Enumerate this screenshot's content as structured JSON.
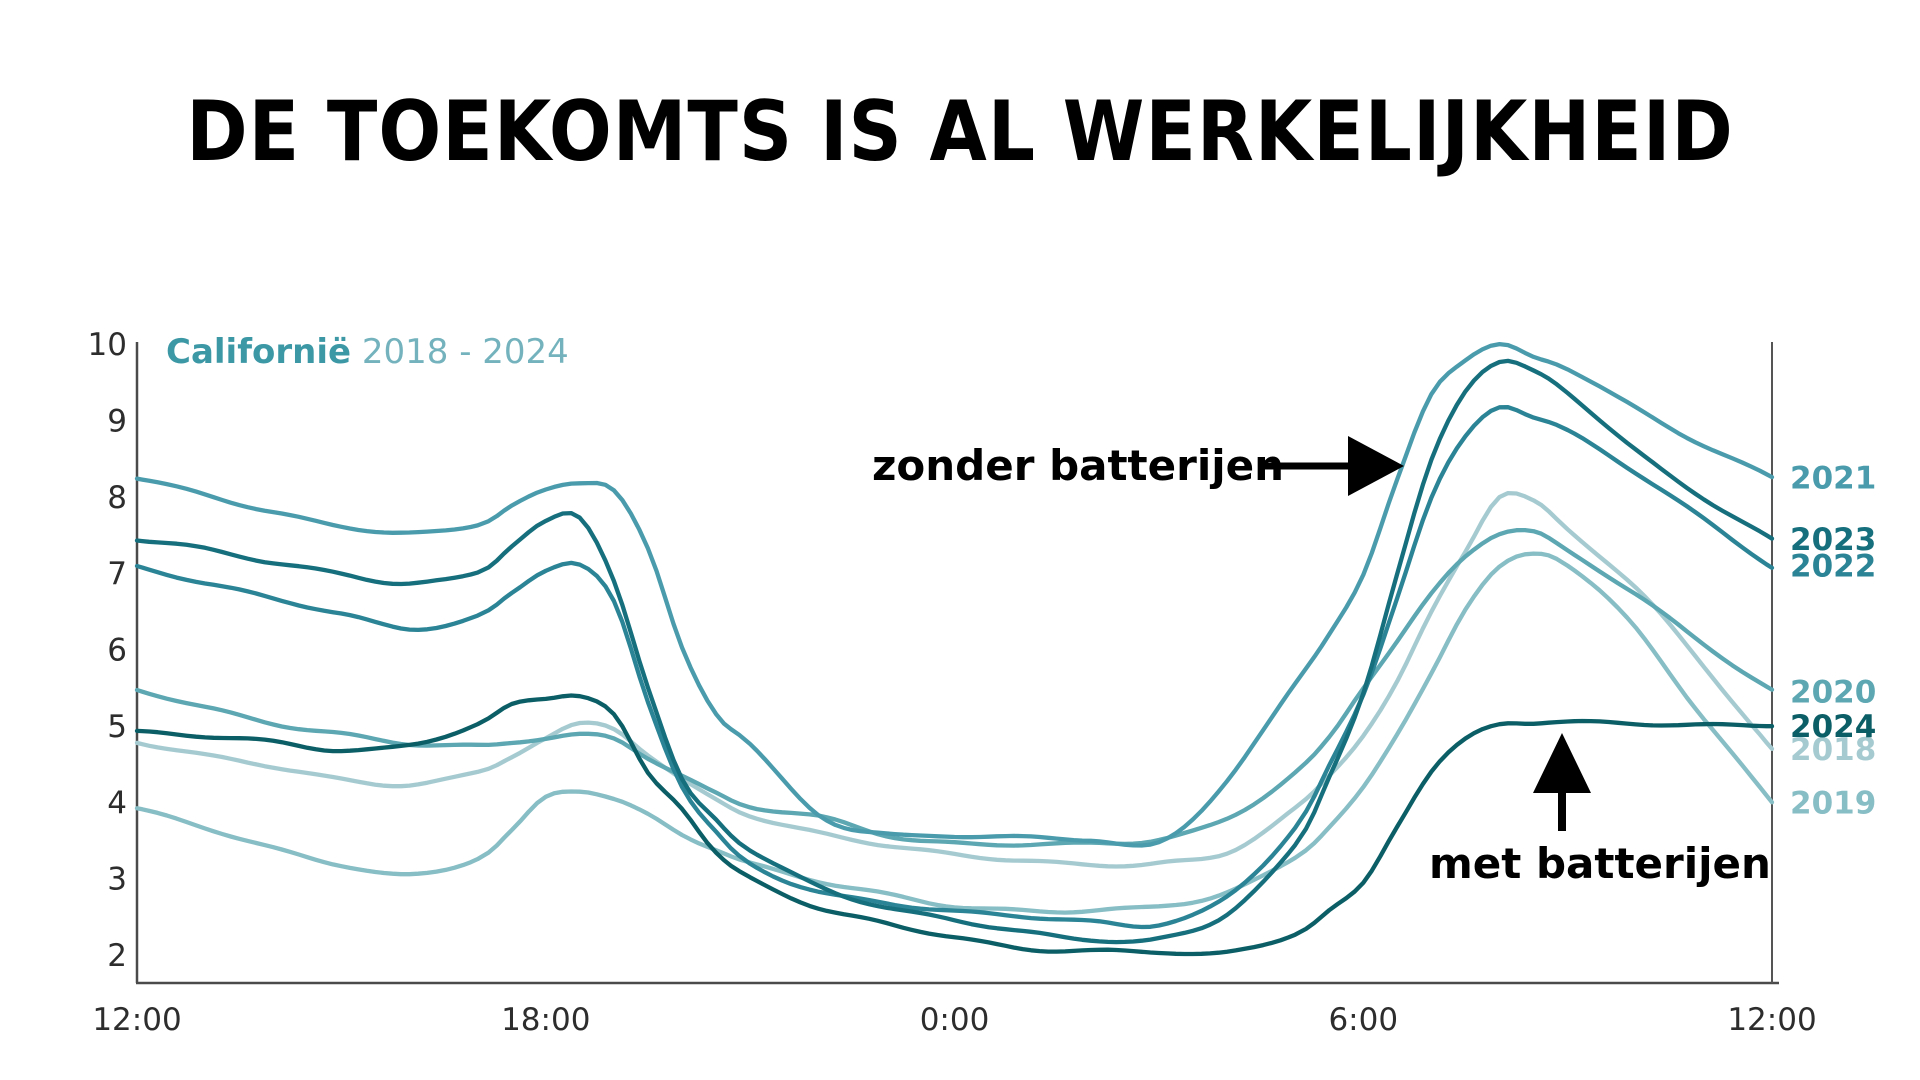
{
  "title": "DE TOEKOMTS IS AL WERKELIJKHEID",
  "chart_data": {
    "type": "line",
    "title": "Californië 2018 - 2024",
    "legend": {
      "region": "Californië",
      "period": "2018 - 2024",
      "region_color": "#3D98A6",
      "period_color": "#74B3BD"
    },
    "ylim": [
      2,
      10
    ],
    "grid": false,
    "y_ticks": [
      10,
      9,
      8,
      7,
      6,
      5,
      4,
      3,
      2
    ],
    "x_ticks": [
      {
        "hours_after_noon": 0,
        "label": "12:00"
      },
      {
        "hours_after_noon": 6,
        "label": "18:00"
      },
      {
        "hours_after_noon": 12,
        "label": "0:00"
      },
      {
        "hours_after_noon": 18,
        "label": "6:00"
      },
      {
        "hours_after_noon": 24,
        "label": "12:00"
      }
    ],
    "hours_after_noon": [
      0,
      1,
      2,
      3,
      4,
      5,
      5.5,
      6,
      6.5,
      7,
      7.5,
      8,
      8.5,
      9,
      10,
      11,
      12,
      13,
      14,
      15,
      16,
      17,
      17.5,
      18,
      18.5,
      19,
      19.5,
      20,
      20.5,
      21,
      22,
      23,
      24
    ],
    "series": [
      {
        "year": "2018",
        "color": "#A5CBD1",
        "values": [
          4.8,
          4.6,
          4.45,
          4.3,
          4.25,
          4.4,
          4.6,
          4.82,
          5.0,
          4.95,
          4.62,
          4.3,
          4.05,
          3.85,
          3.6,
          3.42,
          3.3,
          3.25,
          3.2,
          3.2,
          3.32,
          3.9,
          4.35,
          4.9,
          5.6,
          6.5,
          7.3,
          8.0,
          7.92,
          7.55,
          6.8,
          5.8,
          4.7
        ]
      },
      {
        "year": "2019",
        "color": "#87BDC5",
        "values": [
          3.9,
          3.65,
          3.4,
          3.2,
          3.05,
          3.25,
          3.6,
          4.05,
          4.15,
          4.05,
          3.85,
          3.6,
          3.4,
          3.2,
          2.95,
          2.78,
          2.65,
          2.6,
          2.58,
          2.62,
          2.8,
          3.3,
          3.7,
          4.2,
          4.9,
          5.7,
          6.5,
          7.05,
          7.25,
          7.1,
          6.3,
          5.1,
          4.0
        ]
      },
      {
        "year": "2020",
        "color": "#5CA7B2",
        "values": [
          5.45,
          5.25,
          5.05,
          4.9,
          4.75,
          4.72,
          4.78,
          4.85,
          4.9,
          4.85,
          4.6,
          4.35,
          4.1,
          3.92,
          3.8,
          3.58,
          3.48,
          3.45,
          3.44,
          3.5,
          3.8,
          4.4,
          4.85,
          5.5,
          6.1,
          6.7,
          7.2,
          7.52,
          7.55,
          7.3,
          6.75,
          6.05,
          5.45
        ]
      },
      {
        "year": "2021",
        "color": "#4A9CAC",
        "values": [
          8.25,
          8.05,
          7.8,
          7.6,
          7.5,
          7.65,
          7.9,
          8.1,
          8.2,
          8.1,
          7.3,
          6.0,
          5.15,
          4.75,
          3.85,
          3.6,
          3.56,
          3.52,
          3.5,
          3.48,
          4.3,
          5.55,
          6.2,
          6.95,
          8.2,
          9.35,
          9.8,
          10.0,
          9.85,
          9.7,
          9.15,
          8.65,
          8.25
        ]
      },
      {
        "year": "2022",
        "color": "#2B8495",
        "values": [
          7.1,
          6.88,
          6.65,
          6.45,
          6.28,
          6.45,
          6.75,
          7.05,
          7.1,
          6.6,
          5.3,
          4.2,
          3.6,
          3.2,
          2.85,
          2.68,
          2.55,
          2.5,
          2.45,
          2.42,
          2.75,
          3.65,
          4.45,
          5.4,
          6.7,
          8.0,
          8.8,
          9.2,
          9.05,
          8.85,
          8.3,
          7.7,
          7.1
        ]
      },
      {
        "year": "2023",
        "color": "#166F7D",
        "values": [
          7.45,
          7.3,
          7.12,
          7.0,
          6.88,
          7.02,
          7.35,
          7.65,
          7.7,
          6.9,
          5.5,
          4.3,
          3.8,
          3.4,
          2.9,
          2.6,
          2.45,
          2.32,
          2.22,
          2.2,
          2.52,
          3.42,
          4.35,
          5.45,
          7.0,
          8.5,
          9.4,
          9.75,
          9.62,
          9.35,
          8.6,
          8.0,
          7.45
        ]
      },
      {
        "year": "2024",
        "color": "#0B5E66",
        "values": [
          4.9,
          4.85,
          4.8,
          4.7,
          4.75,
          5.0,
          5.25,
          5.35,
          5.4,
          5.15,
          4.4,
          3.95,
          3.35,
          3.0,
          2.6,
          2.4,
          2.25,
          2.1,
          2.05,
          2.02,
          2.02,
          2.3,
          2.6,
          2.95,
          3.7,
          4.4,
          4.8,
          5.0,
          5.03,
          5.05,
          5.05,
          5.02,
          5.0
        ]
      }
    ],
    "annotations": [
      {
        "id": "zonder",
        "text": "zonder batterijen",
        "arrow": "right",
        "color": "#000000"
      },
      {
        "id": "met",
        "text": "met batterijen",
        "arrow": "up",
        "color": "#000000"
      }
    ],
    "axis_color": "#4A4A4A",
    "tick_text_color": "#2D2D2D"
  }
}
